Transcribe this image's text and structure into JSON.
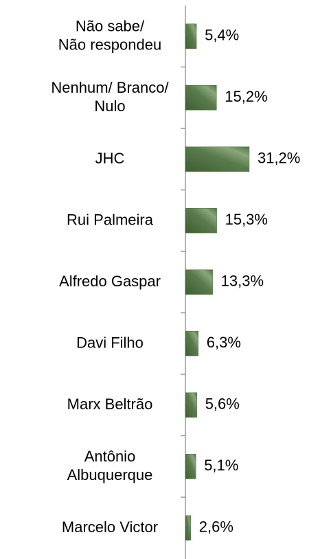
{
  "chart_data": {
    "type": "barh",
    "categories": [
      "Não sabe/\nNão respondeu",
      "Nenhum/ Branco/\nNulo",
      "JHC",
      "Rui Palmeira",
      "Alfredo Gaspar",
      "Davi Filho",
      "Marx Beltrão",
      "Antônio\nAlbuquerque",
      "Marcelo Victor"
    ],
    "values": [
      5.4,
      15.2,
      31.2,
      15.3,
      13.3,
      6.3,
      5.6,
      5.1,
      2.6
    ],
    "value_labels": [
      "5,4%",
      "15,2%",
      "31,2%",
      "15,3%",
      "13,3%",
      "6,3%",
      "5,6%",
      "5,1%",
      "2,6%"
    ],
    "color": "#4f7042"
  }
}
